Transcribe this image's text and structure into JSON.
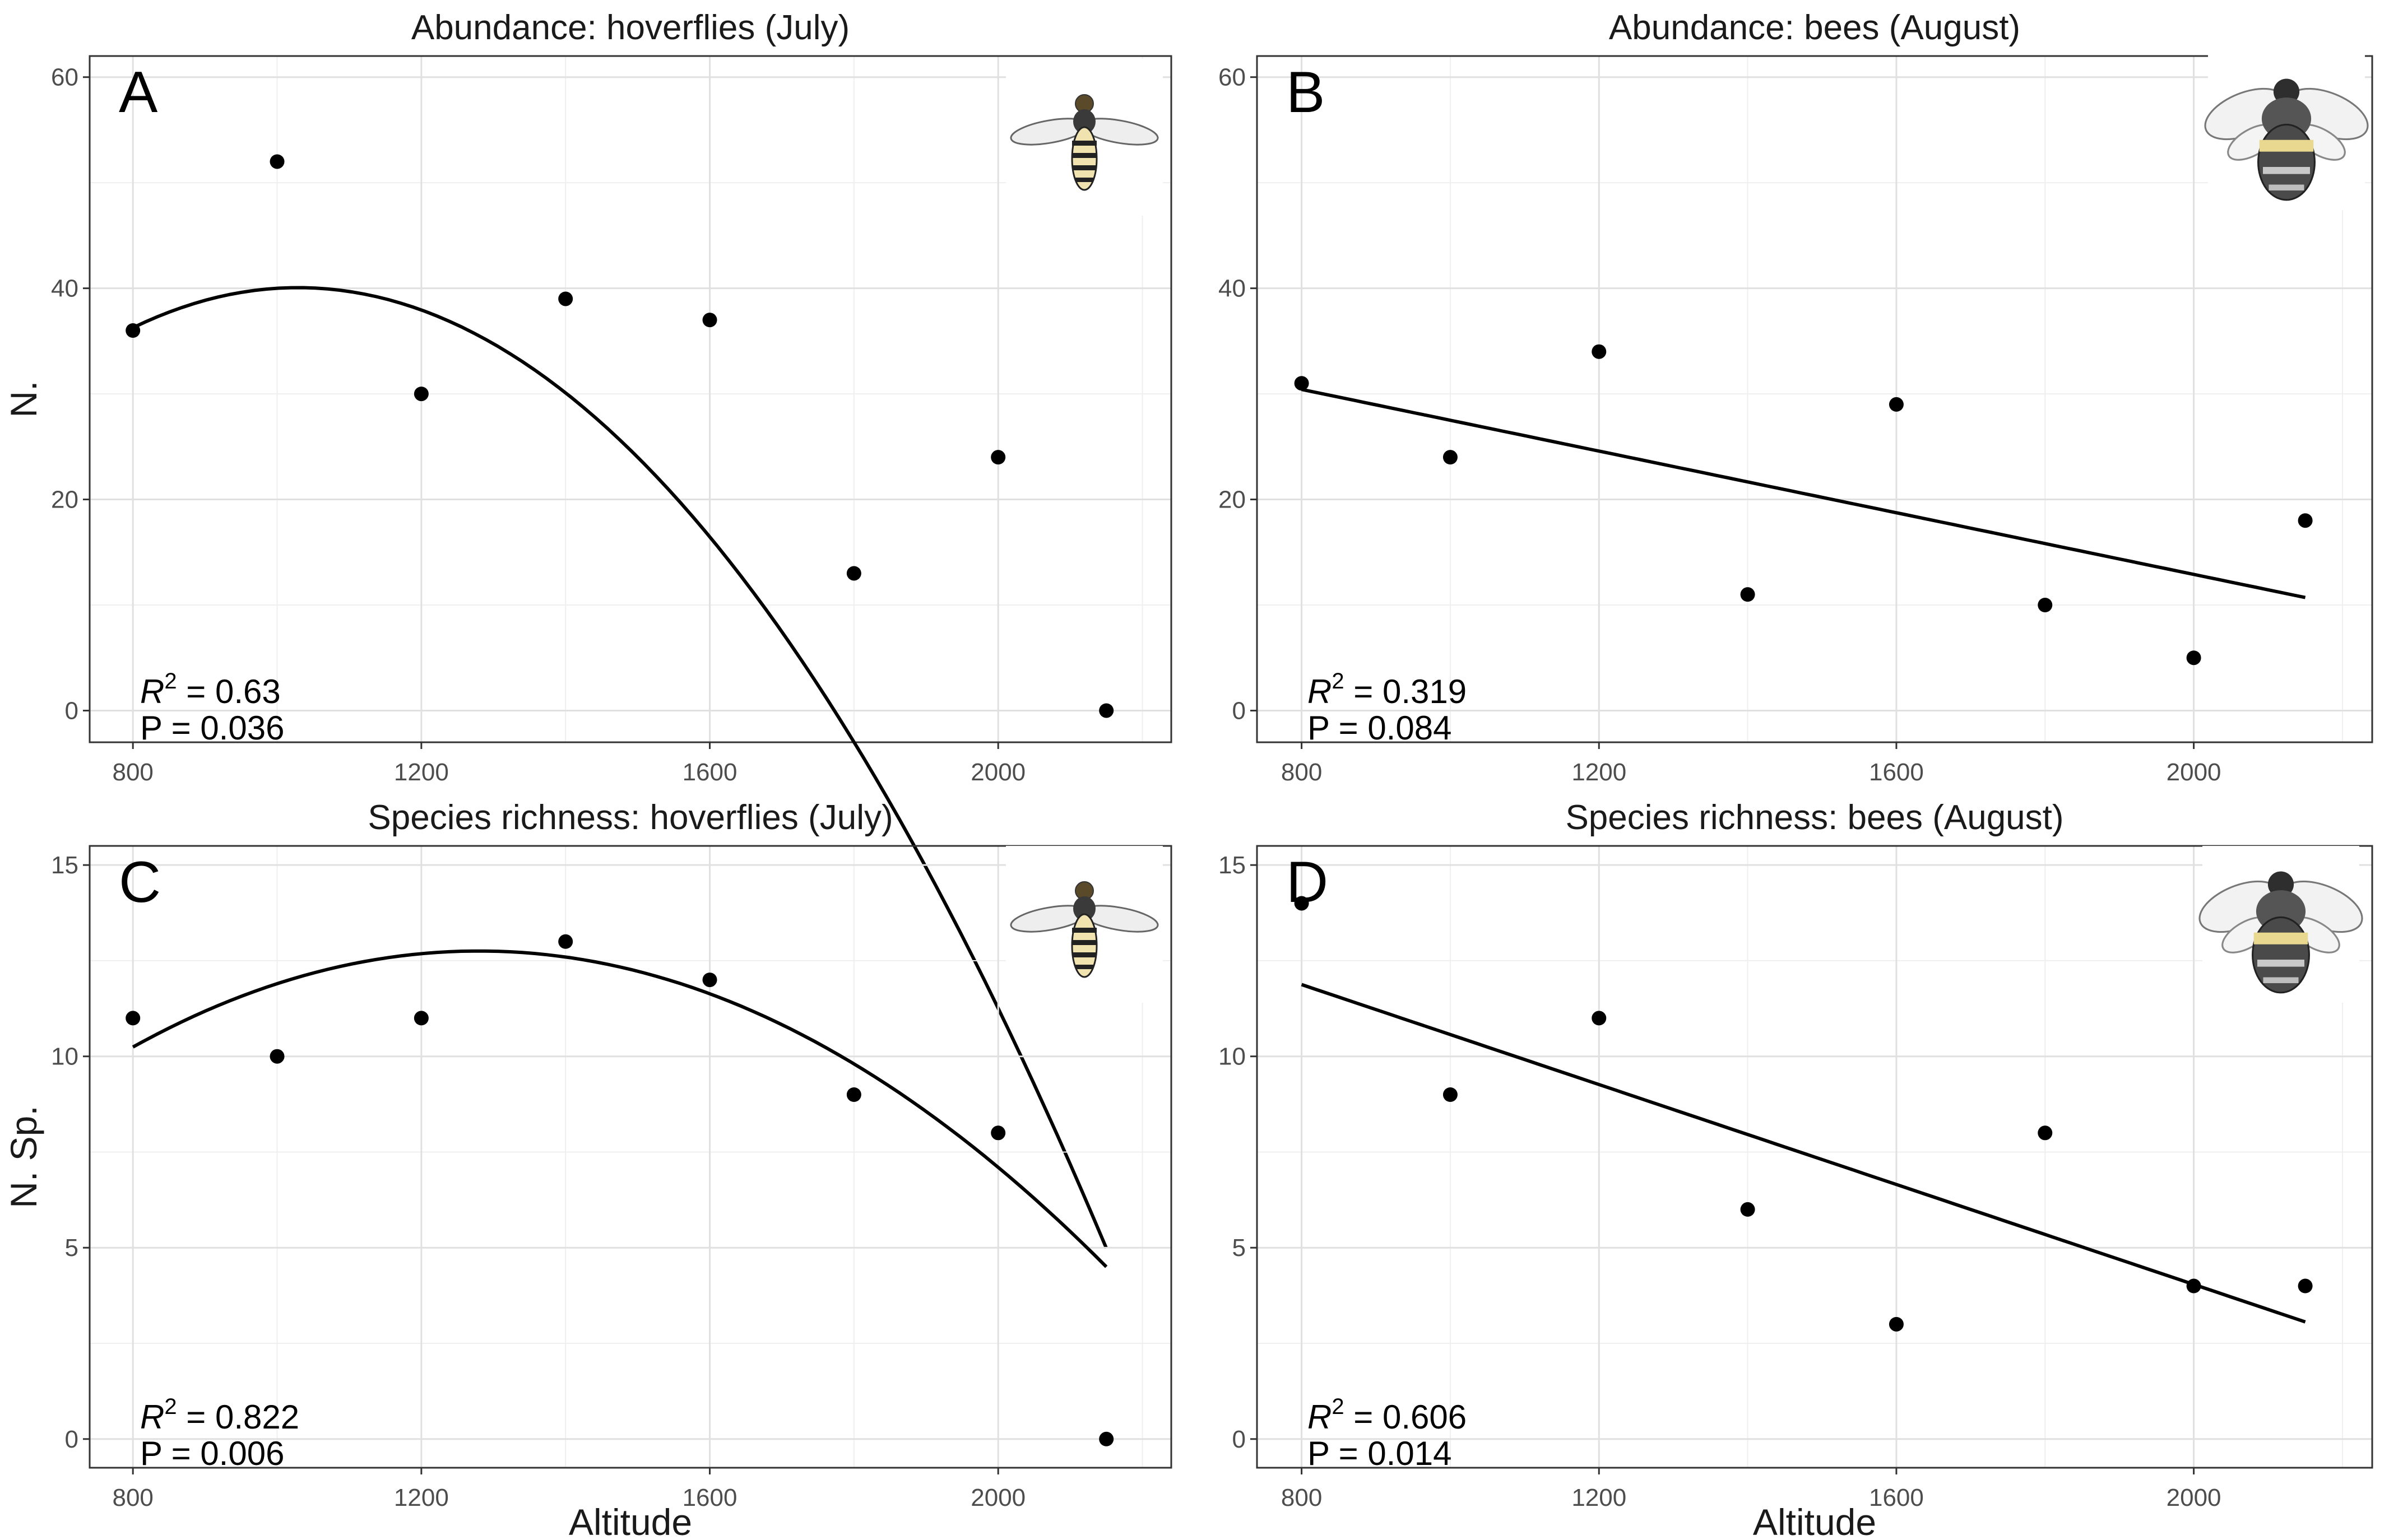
{
  "figure": {
    "xlabel": "Altitude"
  },
  "chart_data": [
    {
      "id": "A",
      "type": "scatter",
      "title": "Abundance: hoverflies (July)",
      "letter": "A",
      "xlabel": "",
      "ylabel": "N.",
      "icon": "hoverfly-icon",
      "x": [
        800,
        1000,
        1200,
        1400,
        1600,
        1800,
        2000,
        2150
      ],
      "y": [
        36,
        52,
        30,
        39,
        37,
        13,
        24,
        0
      ],
      "fit": {
        "type": "quadratic",
        "coef": [
          -36.6,
          0.149,
          -7.24e-05
        ],
        "x_range": [
          800,
          2150
        ]
      },
      "stats": {
        "r2_prefix": "R",
        "r2_sup": "2",
        "r2_value": " = 0.63",
        "p_text": "P = 0.036"
      },
      "xlim": [
        740,
        2240
      ],
      "ylim": [
        -3,
        62
      ],
      "xticks": [
        800,
        1200,
        1600,
        2000
      ],
      "yticks": [
        0,
        20,
        40,
        60
      ]
    },
    {
      "id": "B",
      "type": "scatter",
      "title": "Abundance: bees (August)",
      "letter": "B",
      "xlabel": "",
      "ylabel": "",
      "icon": "bee-icon",
      "x": [
        800,
        1000,
        1200,
        1400,
        1600,
        1800,
        2000,
        2150
      ],
      "y": [
        31,
        24,
        34,
        11,
        29,
        10,
        5,
        18
      ],
      "fit": {
        "type": "linear",
        "coef": [
          42.1,
          -0.0146
        ],
        "x_range": [
          800,
          2150
        ]
      },
      "stats": {
        "r2_prefix": "R",
        "r2_sup": "2",
        "r2_value": " = 0.319",
        "p_text": "P = 0.084"
      },
      "xlim": [
        740,
        2240
      ],
      "ylim": [
        -3,
        62
      ],
      "xticks": [
        800,
        1200,
        1600,
        2000
      ],
      "yticks": [
        0,
        20,
        40,
        60
      ]
    },
    {
      "id": "C",
      "type": "scatter",
      "title": "Species richness: hoverflies (July)",
      "letter": "C",
      "xlabel": "Altitude",
      "ylabel": "N. Sp.",
      "icon": "hoverfly-icon",
      "x": [
        800,
        1000,
        1200,
        1400,
        1600,
        1800,
        2000,
        2150
      ],
      "y": [
        11,
        10,
        11,
        13,
        12,
        9,
        8,
        0
      ],
      "fit": {
        "type": "quadratic",
        "coef": [
          -5.1,
          0.0279,
          -1.09e-05
        ],
        "x_range": [
          800,
          2150
        ]
      },
      "stats": {
        "r2_prefix": "R",
        "r2_sup": "2",
        "r2_value": " = 0.822",
        "p_text": "P = 0.006"
      },
      "xlim": [
        740,
        2240
      ],
      "ylim": [
        -0.75,
        15.5
      ],
      "xticks": [
        800,
        1200,
        1600,
        2000
      ],
      "yticks": [
        0,
        5,
        10,
        15
      ]
    },
    {
      "id": "D",
      "type": "scatter",
      "title": "Species richness: bees (August)",
      "letter": "D",
      "xlabel": "Altitude",
      "ylabel": "",
      "icon": "bee-icon",
      "x": [
        800,
        1000,
        1200,
        1400,
        1600,
        1800,
        2000,
        2150
      ],
      "y": [
        14,
        9,
        11,
        6,
        3,
        8,
        4,
        4
      ],
      "fit": {
        "type": "linear",
        "coef": [
          17.1,
          -0.00653
        ],
        "x_range": [
          800,
          2150
        ]
      },
      "stats": {
        "r2_prefix": "R",
        "r2_sup": "2",
        "r2_value": " = 0.606",
        "p_text": "P = 0.014"
      },
      "xlim": [
        740,
        2240
      ],
      "ylim": [
        -0.75,
        15.5
      ],
      "xticks": [
        800,
        1200,
        1600,
        2000
      ],
      "yticks": [
        0,
        5,
        10,
        15
      ]
    }
  ]
}
